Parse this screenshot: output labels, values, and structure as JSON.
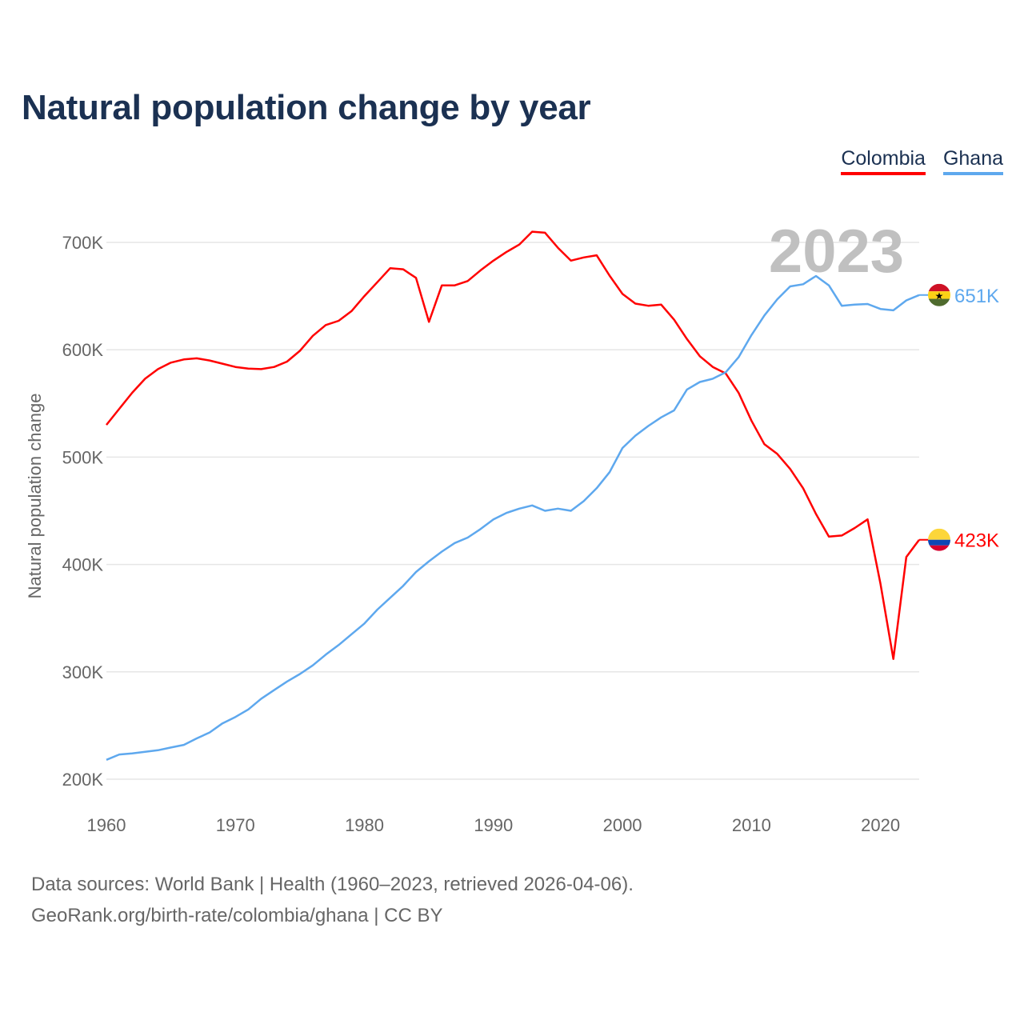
{
  "title": "Natural population change by year",
  "legend": [
    {
      "label": "Colombia",
      "color": "#ff0000"
    },
    {
      "label": "Ghana",
      "color": "#5ea8ee"
    }
  ],
  "year_watermark": "2023",
  "footer": {
    "line1": "Data sources: World Bank | Health (1960–2023, retrieved 2026-04-06).",
    "line2": "GeoRank.org/birth-rate/colombia/ghana | CC BY"
  },
  "chart_data": {
    "type": "line",
    "title": "Natural population change by year",
    "xlabel": "",
    "ylabel": "Natural population change",
    "xlim": [
      1960,
      2023
    ],
    "ylim": [
      200000,
      700000
    ],
    "grid": true,
    "legend_position": "top-right",
    "x_ticks": [
      1960,
      1970,
      1980,
      1990,
      2000,
      2010,
      2020
    ],
    "x_tick_labels": [
      "1960",
      "1970",
      "1980",
      "1990",
      "2000",
      "2010",
      "2020"
    ],
    "y_ticks": [
      200000,
      300000,
      400000,
      500000,
      600000,
      700000
    ],
    "y_tick_labels": [
      "200K",
      "300K",
      "400K",
      "500K",
      "600K",
      "700K"
    ],
    "x": [
      1960,
      1961,
      1962,
      1963,
      1964,
      1965,
      1966,
      1967,
      1968,
      1969,
      1970,
      1971,
      1972,
      1973,
      1974,
      1975,
      1976,
      1977,
      1978,
      1979,
      1980,
      1981,
      1982,
      1983,
      1984,
      1985,
      1986,
      1987,
      1988,
      1989,
      1990,
      1991,
      1992,
      1993,
      1994,
      1995,
      1996,
      1997,
      1998,
      1999,
      2000,
      2001,
      2002,
      2003,
      2004,
      2005,
      2006,
      2007,
      2008,
      2009,
      2010,
      2011,
      2012,
      2013,
      2014,
      2015,
      2016,
      2017,
      2018,
      2019,
      2020,
      2021,
      2022,
      2023
    ],
    "series": [
      {
        "name": "Colombia",
        "color": "#ff0000",
        "end_label": "423K",
        "values": [
          530000,
          545000,
          560000,
          573000,
          582000,
          588000,
          591000,
          592000,
          590000,
          587000,
          584000,
          582500,
          582000,
          584000,
          589000,
          599000,
          613000,
          623000,
          627000,
          636000,
          650000,
          663000,
          676000,
          675000,
          667000,
          626000,
          660000,
          660000,
          664000,
          674000,
          683000,
          691000,
          698000,
          710000,
          709000,
          695000,
          683000,
          686000,
          688000,
          669000,
          652000,
          643000,
          641000,
          642000,
          628000,
          610000,
          594000,
          584000,
          578000,
          560000,
          534000,
          512000,
          503000,
          489000,
          471000,
          447000,
          426000,
          427000,
          434000,
          442000,
          382000,
          312000,
          407000,
          423000
        ]
      },
      {
        "name": "Ghana",
        "color": "#5ea8ee",
        "end_label": "651K",
        "values": [
          218000,
          223000,
          224000,
          225500,
          227000,
          229500,
          232000,
          238000,
          243500,
          252000,
          258000,
          265000,
          275000,
          283000,
          291000,
          298000,
          306000,
          316000,
          325000,
          335000,
          345000,
          358000,
          369000,
          380000,
          393000,
          403000,
          412000,
          420000,
          425000,
          433000,
          442000,
          448000,
          452000,
          455000,
          450000,
          452000,
          450000,
          459000,
          471000,
          486000,
          508500,
          520000,
          529000,
          537000,
          543500,
          563000,
          570000,
          573000,
          579000,
          593000,
          613600,
          632000,
          647000,
          659000,
          661000,
          668700,
          660000,
          641000,
          642000,
          642600,
          638000,
          636700,
          646000,
          651000
        ]
      }
    ]
  }
}
